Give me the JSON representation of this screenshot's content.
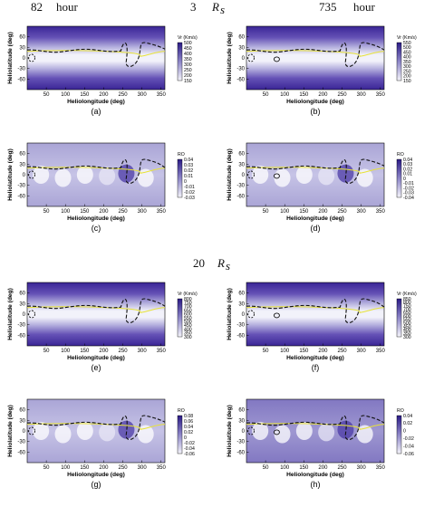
{
  "headers": {
    "top_left_number": "82",
    "top_left_unit": "hour",
    "top_mid_number": "3",
    "top_mid_unit": "R",
    "top_mid_sub": "s",
    "top_right_number": "735",
    "top_right_unit": "hour",
    "mid_number": "20",
    "mid_unit": "R",
    "mid_sub": "s"
  },
  "axes": {
    "xlabel": "Heliolongitude (deg)",
    "ylabel": "Heliolatitude (deg)",
    "xticks": [
      "50",
      "100",
      "150",
      "200",
      "250",
      "300",
      "350"
    ],
    "yticks": [
      "60",
      "30",
      "0",
      "-30",
      "-60"
    ]
  },
  "panels": [
    {
      "label": "(a)",
      "kind": "vr",
      "cb_title": "Vr (Km/s)",
      "cb_ticks": [
        "500",
        "450",
        "400",
        "350",
        "300",
        "250",
        "200",
        "150"
      ]
    },
    {
      "label": "(b)",
      "kind": "vr",
      "cb_title": "Vr (Km/s)",
      "cb_ticks": [
        "550",
        "500",
        "450",
        "400",
        "350",
        "300",
        "250",
        "200",
        "150"
      ]
    },
    {
      "label": "(c)",
      "kind": "ro",
      "cb_title": "RO",
      "cb_ticks": [
        "0.04",
        "0.03",
        "0.02",
        "0.01",
        "0",
        "-0.01",
        "-0.02",
        "-0.03"
      ]
    },
    {
      "label": "(d)",
      "kind": "ro",
      "cb_title": "RO",
      "cb_ticks": [
        "0.04",
        "0.03",
        "0.02",
        "0.01",
        "0",
        "-0.01",
        "-0.02",
        "-0.03",
        "-0.04"
      ]
    },
    {
      "label": "(e)",
      "kind": "vr",
      "cb_title": "Vr (Km/s)",
      "cb_ticks": [
        "800",
        "750",
        "700",
        "650",
        "600",
        "550",
        "500",
        "450",
        "400",
        "350",
        "300"
      ]
    },
    {
      "label": "(f)",
      "kind": "vr",
      "cb_title": "Vr (Km/s)",
      "cb_ticks": [
        "850",
        "800",
        "750",
        "700",
        "650",
        "600",
        "550",
        "500",
        "450",
        "400",
        "350",
        "300"
      ]
    },
    {
      "label": "(g)",
      "kind": "ro",
      "cb_title": "RO",
      "cb_ticks": [
        "0.08",
        "0.06",
        "0.04",
        "0.02",
        "0",
        "-0.02",
        "-0.04",
        "-0.06"
      ]
    },
    {
      "label": "(h)",
      "kind": "ro",
      "cb_title": "RO",
      "cb_ticks": [
        "0.04",
        "0.02",
        "0",
        "-0.02",
        "-0.04",
        "-0.06"
      ]
    }
  ],
  "colors": {
    "high": "#2a1a86",
    "mid": "#8d86c8",
    "low": "#f4f4fa",
    "neutral_line": "#111111",
    "current_sheet": "#e7e23a"
  }
}
